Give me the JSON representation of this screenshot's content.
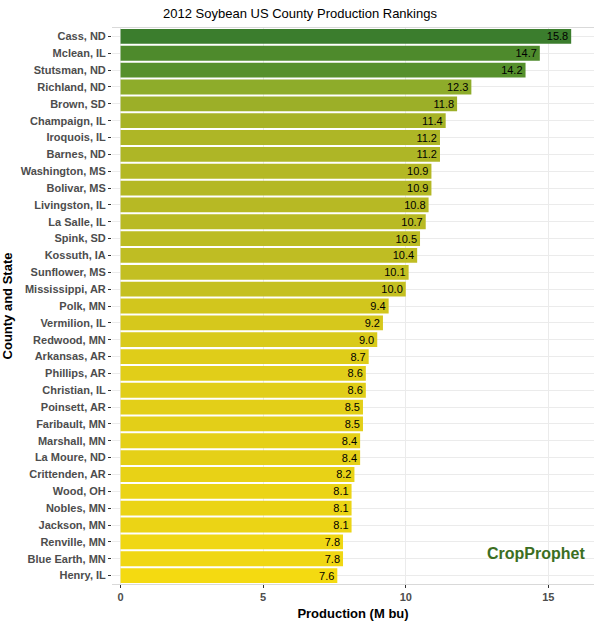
{
  "chart_data": {
    "type": "bar",
    "orientation": "horizontal",
    "title": "2012 Soybean US County Production Rankings",
    "x_label": "Production (M bu)",
    "y_label": "County and State",
    "annotations": [
      "CropProphet"
    ],
    "categories": [
      "Cass, ND",
      "Mclean, IL",
      "Stutsman, ND",
      "Richland, ND",
      "Brown, SD",
      "Champaign, IL",
      "Iroquois, IL",
      "Barnes, ND",
      "Washington, MS",
      "Bolivar, MS",
      "Livingston, IL",
      "La Salle, IL",
      "Spink, SD",
      "Kossuth, IA",
      "Sunflower, MS",
      "Mississippi, AR",
      "Polk, MN",
      "Vermilion, IL",
      "Redwood, MN",
      "Arkansas, AR",
      "Phillips, AR",
      "Christian, IL",
      "Poinsett, AR",
      "Faribault, MN",
      "Marshall, MN",
      "La Moure, ND",
      "Crittenden, AR",
      "Wood, OH",
      "Nobles, MN",
      "Jackson, MN",
      "Renville, MN",
      "Blue Earth, MN",
      "Henry, IL"
    ],
    "values": [
      15.8,
      14.7,
      14.2,
      12.3,
      11.8,
      11.4,
      11.2,
      11.2,
      10.9,
      10.9,
      10.8,
      10.7,
      10.5,
      10.4,
      10.1,
      10.0,
      9.4,
      9.2,
      9.0,
      8.7,
      8.6,
      8.6,
      8.5,
      8.5,
      8.4,
      8.4,
      8.2,
      8.1,
      8.1,
      8.1,
      7.8,
      7.8,
      7.6
    ],
    "value_labels": [
      "15.8",
      "14.7",
      "14.2",
      "12.3",
      "11.8",
      "11.4",
      "11.2",
      "11.2",
      "10.9",
      "10.9",
      "10.8",
      "10.7",
      "10.5",
      "10.4",
      "10.1",
      "10.0",
      "9.4",
      "9.2",
      "9.0",
      "8.7",
      "8.6",
      "8.6",
      "8.5",
      "8.5",
      "8.4",
      "8.4",
      "8.2",
      "8.1",
      "8.1",
      "8.1",
      "7.8",
      "7.8",
      "7.6"
    ],
    "colors": [
      "#3b7d2d",
      "#4e8a2c",
      "#56902c",
      "#8eac2a",
      "#9caf28",
      "#a7b326",
      "#aeb626",
      "#aeb626",
      "#b4b824",
      "#b4b824",
      "#b7b924",
      "#b9ba24",
      "#bcbc23",
      "#bfbd23",
      "#c3bf22",
      "#c5c021",
      "#d2c61d",
      "#d6c81c",
      "#d9ca1b",
      "#dfcd19",
      "#e1ce19",
      "#e1ce19",
      "#e3cf18",
      "#e3cf18",
      "#e5d017",
      "#e5d017",
      "#e8d216",
      "#ebd415",
      "#ebd415",
      "#ebd415",
      "#f0d713",
      "#f0d713",
      "#f4da11"
    ],
    "xlim": [
      -0.3,
      16.6
    ],
    "xticks": [
      0,
      5,
      10,
      15
    ],
    "grid": true,
    "data_labels": true
  }
}
